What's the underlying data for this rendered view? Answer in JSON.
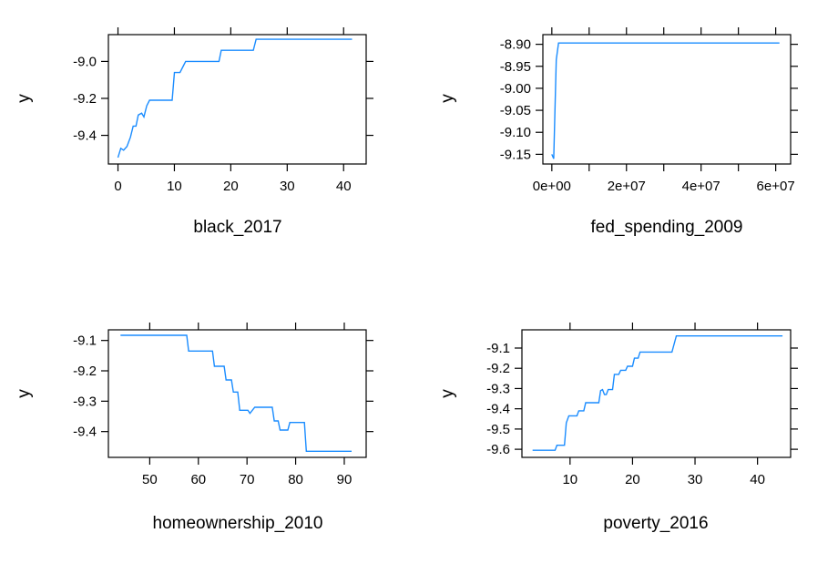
{
  "chart_data": [
    {
      "type": "line",
      "xlabel": "black_2017",
      "ylabel": "y",
      "xlim": [
        -1.7,
        44
      ],
      "ylim": [
        -9.555,
        -8.855
      ],
      "xticks": [
        0,
        10,
        20,
        30,
        40
      ],
      "xtick_labels": [
        "0",
        "10",
        "20",
        "30",
        "40"
      ],
      "yticks": [
        -9.4,
        -9.2,
        -9.0
      ],
      "ytick_labels": [
        "-9.4",
        "-9.2",
        "-9.0"
      ],
      "grid": false,
      "series": [
        {
          "color": "#1a8cff",
          "x": [
            0,
            0.5,
            1,
            1.6,
            2.2,
            2.7,
            3.2,
            3.6,
            4.2,
            4.6,
            5.1,
            5.6,
            9.6,
            10,
            11,
            11.5,
            12,
            17.9,
            18.3,
            24,
            24.5,
            41.5
          ],
          "y": [
            -9.52,
            -9.47,
            -9.48,
            -9.46,
            -9.41,
            -9.35,
            -9.35,
            -9.29,
            -9.28,
            -9.3,
            -9.24,
            -9.21,
            -9.21,
            -9.06,
            -9.06,
            -9.03,
            -9.0,
            -9.0,
            -8.94,
            -8.94,
            -8.88,
            -8.88
          ]
        }
      ]
    },
    {
      "type": "line",
      "xlabel": "fed_spending_2009",
      "ylabel": "y",
      "xlim": [
        -2400000,
        64000000
      ],
      "ylim": [
        -9.172,
        -8.878
      ],
      "xticks": [
        0,
        10000000,
        20000000,
        30000000,
        40000000,
        50000000,
        60000000
      ],
      "xtick_labels": [
        "0e+00",
        "",
        "2e+07",
        "",
        "4e+07",
        "",
        "6e+07"
      ],
      "yticks": [
        -9.15,
        -9.1,
        -9.05,
        -9.0,
        -8.95,
        -8.9
      ],
      "ytick_labels": [
        "-9.15",
        "-9.10",
        "-9.05",
        "-9.00",
        "-8.95",
        "-8.90"
      ],
      "grid": false,
      "series": [
        {
          "color": "#1a8cff",
          "x": [
            0,
            500000,
            1200000,
            1800000,
            61000000
          ],
          "y": [
            -9.15,
            -9.16,
            -8.935,
            -8.897,
            -8.897
          ]
        }
      ]
    },
    {
      "type": "line",
      "xlabel": "homeownership_2010",
      "ylabel": "y",
      "xlim": [
        41.5,
        94.5
      ],
      "ylim": [
        -9.485,
        -9.065
      ],
      "xticks": [
        50,
        60,
        70,
        80,
        90
      ],
      "xtick_labels": [
        "50",
        "60",
        "70",
        "80",
        "90"
      ],
      "yticks": [
        -9.4,
        -9.3,
        -9.2,
        -9.1
      ],
      "ytick_labels": [
        "-9.4",
        "-9.3",
        "-9.2",
        "-9.1"
      ],
      "grid": false,
      "series": [
        {
          "color": "#1a8cff",
          "x": [
            44,
            57.6,
            58,
            62.9,
            63.3,
            65.3,
            65.7,
            66.8,
            67.2,
            68.1,
            68.5,
            70.2,
            70.6,
            71.6,
            75.2,
            75.6,
            76.4,
            76.8,
            78.4,
            78.8,
            81.8,
            82.2,
            91.5
          ],
          "y": [
            -9.083,
            -9.083,
            -9.135,
            -9.135,
            -9.185,
            -9.185,
            -9.23,
            -9.23,
            -9.27,
            -9.27,
            -9.33,
            -9.33,
            -9.34,
            -9.32,
            -9.32,
            -9.365,
            -9.365,
            -9.395,
            -9.395,
            -9.37,
            -9.37,
            -9.465,
            -9.465
          ]
        }
      ]
    },
    {
      "type": "line",
      "xlabel": "poverty_2016",
      "ylabel": "y",
      "xlim": [
        2.3,
        45.3
      ],
      "ylim": [
        -9.64,
        -9.01
      ],
      "xticks": [
        10,
        20,
        30,
        40
      ],
      "xtick_labels": [
        "10",
        "20",
        "30",
        "40"
      ],
      "yticks": [
        -9.6,
        -9.5,
        -9.4,
        -9.3,
        -9.2,
        -9.1
      ],
      "ytick_labels": [
        "-9.6",
        "-9.5",
        "-9.4",
        "-9.3",
        "-9.2",
        "-9.1"
      ],
      "grid": false,
      "series": [
        {
          "color": "#1a8cff",
          "x": [
            4,
            7.6,
            7.9,
            9.1,
            9.4,
            9.8,
            11.1,
            11.4,
            12.2,
            12.5,
            14.6,
            14.9,
            15.2,
            15.5,
            15.8,
            16.1,
            16.8,
            17.1,
            17.8,
            18.1,
            18.9,
            19.2,
            20,
            20.3,
            20.9,
            21.2,
            22.1,
            22.4,
            26.3,
            27,
            44
          ],
          "y": [
            -9.605,
            -9.605,
            -9.58,
            -9.58,
            -9.47,
            -9.435,
            -9.435,
            -9.41,
            -9.41,
            -9.37,
            -9.37,
            -9.31,
            -9.305,
            -9.33,
            -9.33,
            -9.305,
            -9.305,
            -9.23,
            -9.23,
            -9.21,
            -9.21,
            -9.19,
            -9.19,
            -9.15,
            -9.15,
            -9.12,
            -9.12,
            -9.12,
            -9.12,
            -9.04,
            -9.04
          ]
        }
      ]
    }
  ]
}
